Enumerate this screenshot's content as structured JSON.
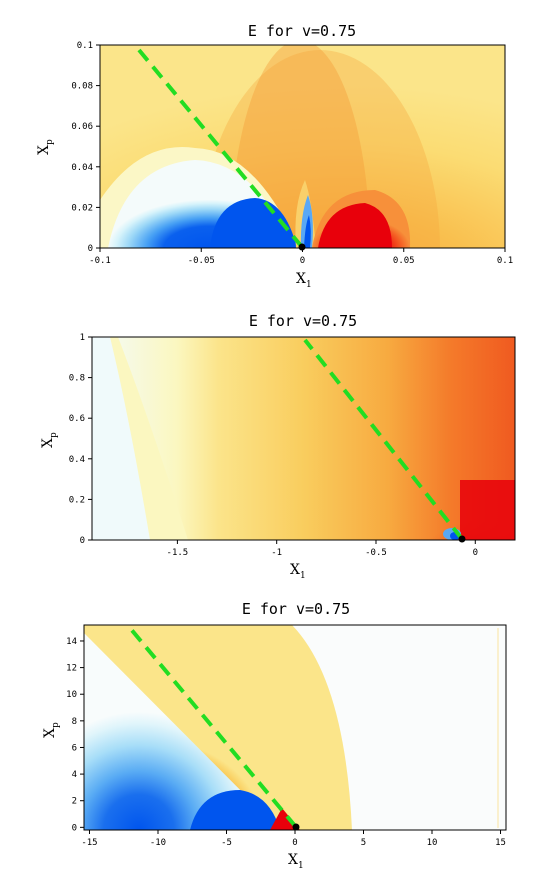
{
  "colors": {
    "frame": "#000000",
    "guide_line": "#22dd22",
    "origin_point": "#000000",
    "ramp": [
      "#0055ee",
      "#3a8ff5",
      "#8ccdf5",
      "#d6f3fb",
      "#fafcfc",
      "#fbf3a6",
      "#fad062",
      "#f7a63c",
      "#f46a25",
      "#ee2a10",
      "#e8000b"
    ]
  },
  "chart_data": [
    {
      "type": "heatmap",
      "title": "E for v=0.75",
      "xlabel": "X",
      "xlabel_sub": "1",
      "ylabel": "X",
      "ylabel_sub": "p",
      "xlim": [
        -0.1,
        0.1
      ],
      "ylim": [
        0,
        0.1
      ],
      "xticks": [
        "-0.1",
        "-0.05",
        "0",
        "0.05",
        "0.1"
      ],
      "xtick_values": [
        -0.1,
        -0.05,
        0,
        0.05,
        0.1
      ],
      "yticks": [
        "0",
        "0.02",
        "0.04",
        "0.06",
        "0.08",
        "0.1"
      ],
      "ytick_values": [
        0,
        0.02,
        0.04,
        0.06,
        0.08,
        0.1
      ],
      "guide_line": {
        "from": [
          0,
          0
        ],
        "to": [
          -0.08,
          0.097
        ],
        "style": "dashed"
      },
      "origin_point": [
        0,
        0
      ]
    },
    {
      "type": "heatmap",
      "title": "E for v=0.75",
      "xlabel": "X",
      "xlabel_sub": "1",
      "ylabel": "X",
      "ylabel_sub": "p",
      "xlim": [
        -1.93,
        0.2
      ],
      "ylim": [
        0,
        1
      ],
      "xticks": [
        "-1.5",
        "-1",
        "-0.5",
        "0"
      ],
      "xtick_values": [
        -1.5,
        -1,
        -0.5,
        0
      ],
      "yticks": [
        "0",
        "0.2",
        "0.4",
        "0.6",
        "0.8",
        "1"
      ],
      "ytick_values": [
        0,
        0.2,
        0.4,
        0.6,
        0.8,
        1
      ],
      "guide_line": {
        "from": [
          0,
          0
        ],
        "to": [
          -0.82,
          1.0
        ],
        "style": "dashed"
      },
      "origin_point": [
        0,
        0
      ]
    },
    {
      "type": "heatmap",
      "title": "E for v=0.75",
      "xlabel": "X",
      "xlabel_sub": "1",
      "ylabel": "X",
      "ylabel_sub": "p",
      "xlim": [
        -15.4,
        15.4
      ],
      "ylim": [
        -0.2,
        15.2
      ],
      "xticks": [
        "-15",
        "-10",
        "-5",
        "0",
        "5",
        "10",
        "15"
      ],
      "xtick_values": [
        -15,
        -10,
        -5,
        0,
        5,
        10,
        15
      ],
      "yticks": [
        "0",
        "2",
        "4",
        "6",
        "8",
        "10",
        "12",
        "14"
      ],
      "ytick_values": [
        0,
        2,
        4,
        6,
        8,
        10,
        12,
        14
      ],
      "guide_line": {
        "from": [
          0,
          0
        ],
        "to": [
          -12,
          14.6
        ],
        "style": "dashed"
      },
      "origin_point": [
        0,
        0
      ]
    }
  ]
}
